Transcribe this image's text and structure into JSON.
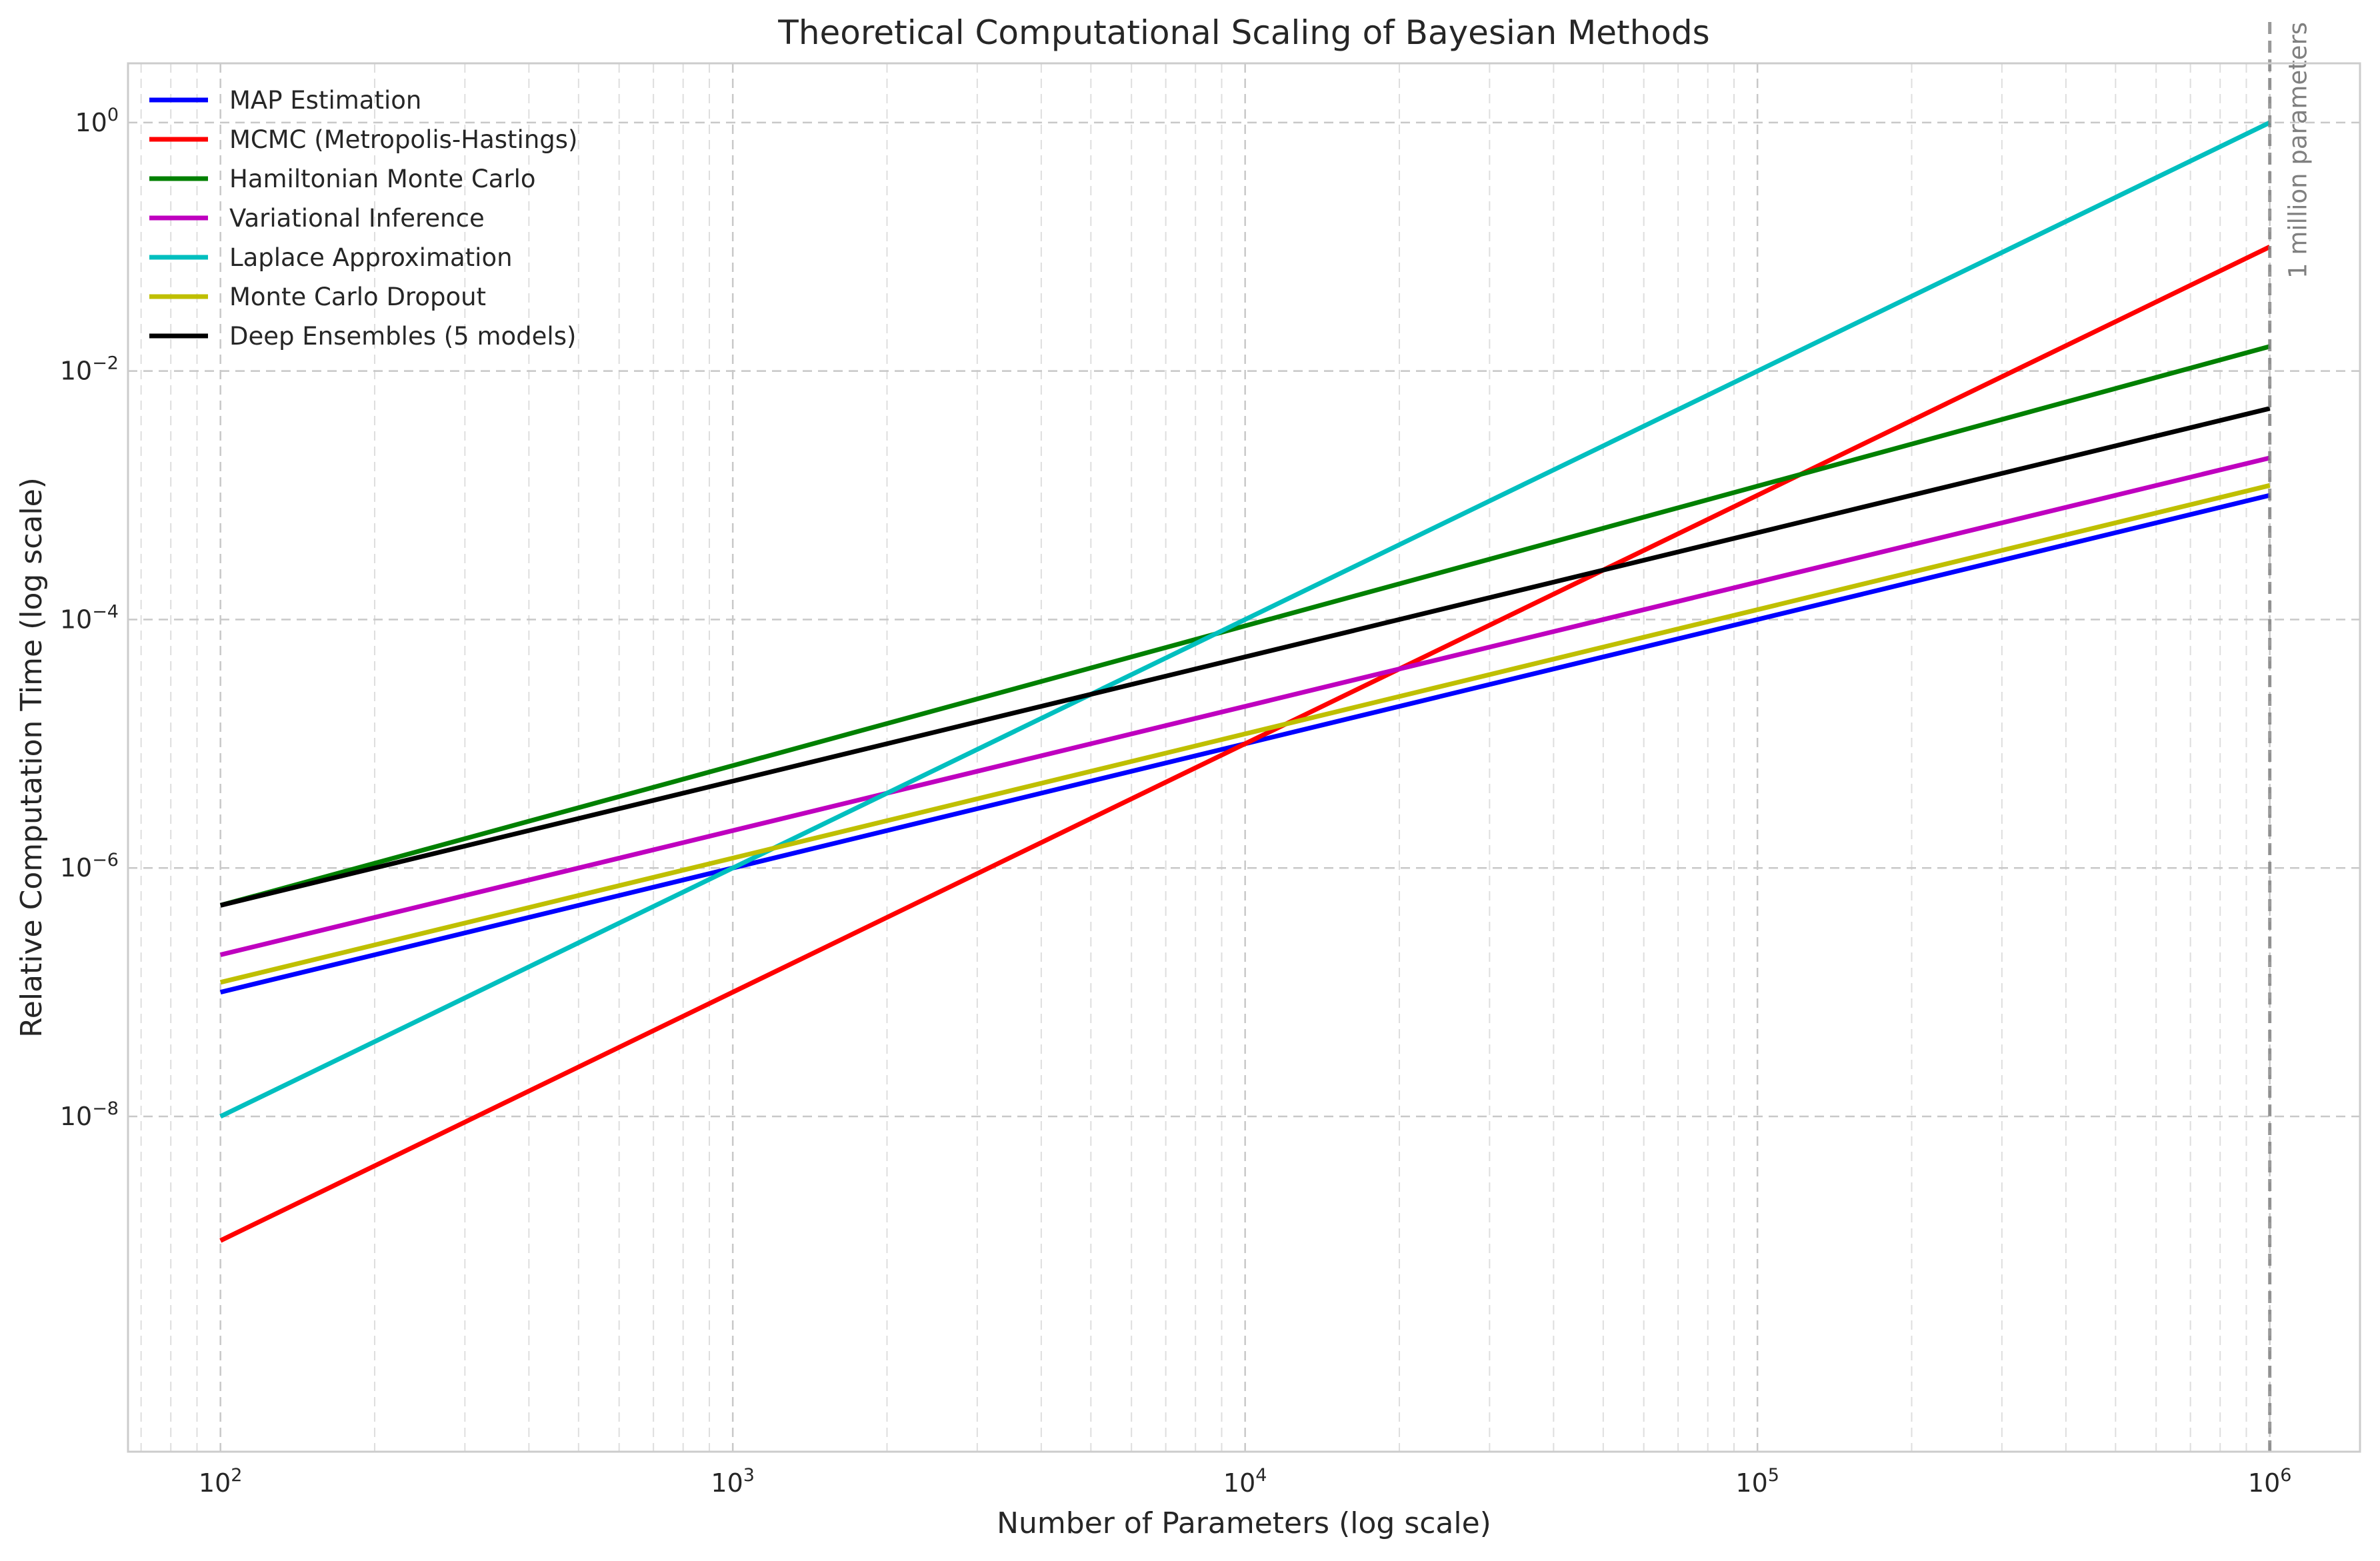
{
  "chart_data": {
    "type": "line",
    "title": "Theoretical Computational Scaling of Bayesian Methods",
    "xlabel": "Number of Parameters (log scale)",
    "ylabel": "Relative Computation Time (log scale)",
    "xscale": "log",
    "yscale": "log",
    "xlim": [
      66,
      1500000
    ],
    "ylim": [
      2e-11,
      3
    ],
    "grid": true,
    "legend_position": "top-left",
    "x_ticks": [
      {
        "value": 100,
        "base": "10",
        "exp": "2"
      },
      {
        "value": 1000,
        "base": "10",
        "exp": "3"
      },
      {
        "value": 10000,
        "base": "10",
        "exp": "4"
      },
      {
        "value": 100000,
        "base": "10",
        "exp": "5"
      },
      {
        "value": 1000000,
        "base": "10",
        "exp": "6"
      }
    ],
    "y_ticks": [
      {
        "value": 1,
        "base": "10",
        "exp": "0"
      },
      {
        "value": 0.01,
        "base": "10",
        "exp": "−2"
      },
      {
        "value": 0.0001,
        "base": "10",
        "exp": "−4"
      },
      {
        "value": 1e-06,
        "base": "10",
        "exp": "−6"
      },
      {
        "value": 1e-08,
        "base": "10",
        "exp": "−8"
      }
    ],
    "series": [
      {
        "name": "MAP Estimation",
        "color": "#0000ff",
        "x": [
          100,
          1000000
        ],
        "y": [
          1e-07,
          0.001
        ]
      },
      {
        "name": "MCMC (Metropolis-Hastings)",
        "color": "#ff0000",
        "x": [
          100,
          1000000
        ],
        "y": [
          1e-09,
          0.1
        ]
      },
      {
        "name": "Hamiltonian Monte Carlo",
        "color": "#008000",
        "x": [
          100,
          1000000
        ],
        "y": [
          5e-07,
          0.0158
        ]
      },
      {
        "name": "Variational Inference",
        "color": "#bf00bf",
        "x": [
          100,
          1000000
        ],
        "y": [
          2e-07,
          0.002
        ]
      },
      {
        "name": "Laplace Approximation",
        "color": "#00bfbf",
        "x": [
          100,
          1000000
        ],
        "y": [
          1e-08,
          1
        ]
      },
      {
        "name": "Monte Carlo Dropout",
        "color": "#bfbf00",
        "x": [
          100,
          1000000
        ],
        "y": [
          1.2e-07,
          0.0012
        ]
      },
      {
        "name": "Deep Ensembles (5 models)",
        "color": "#000000",
        "x": [
          100,
          1000000
        ],
        "y": [
          5e-07,
          0.005
        ]
      }
    ],
    "annotations": [
      {
        "text": "1 million parameters",
        "x": 1000000,
        "style": "dashed vertical line",
        "color": "#808080"
      }
    ]
  }
}
